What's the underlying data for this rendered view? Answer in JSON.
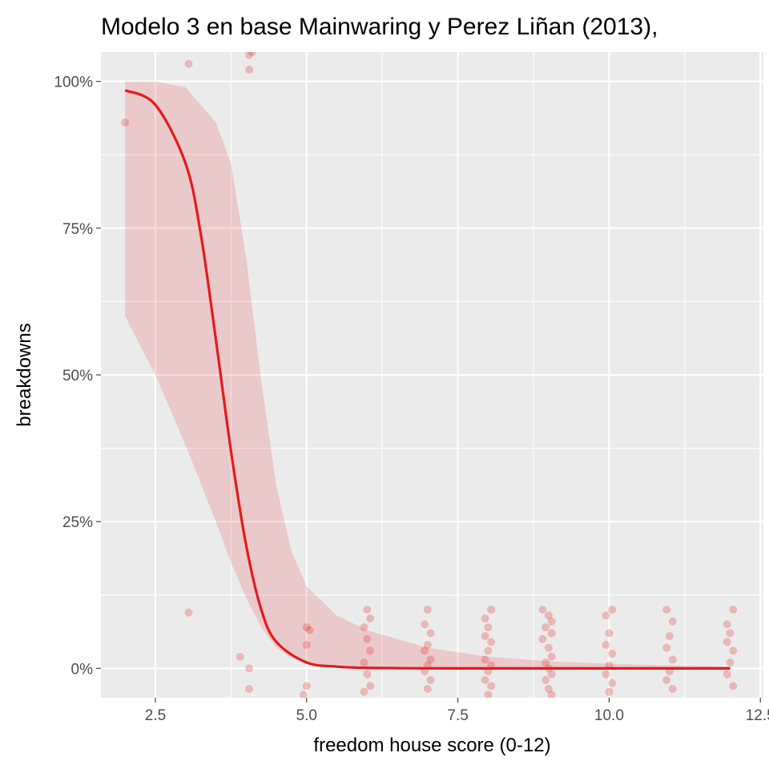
{
  "chart_data": {
    "type": "scatter",
    "title": "Modelo 3 en base Mainwaring y Perez Liñan (2013),",
    "xlabel": "freedom house score (0-12)",
    "ylabel": "breakdowns",
    "xlim": [
      1.6,
      12.55
    ],
    "ylim": [
      -0.05,
      1.05
    ],
    "x_ticks": [
      2.5,
      5.0,
      7.5,
      10.0,
      12.5
    ],
    "x_tick_labels": [
      "2.5",
      "5.0",
      "7.5",
      "10.0",
      "12.5"
    ],
    "y_ticks": [
      0,
      0.25,
      0.5,
      0.75,
      1.0
    ],
    "y_tick_labels": [
      "0%",
      "25%",
      "50%",
      "75%",
      "100%"
    ],
    "grid": true,
    "legend": "none",
    "colors": {
      "line": "#e41a1c",
      "ribbon": "#e41a1c",
      "points": "#e41a1c",
      "panel_background": "#ebebeb",
      "grid": "#ffffff"
    },
    "curve": {
      "x": [
        2,
        2.5,
        3,
        3.25,
        3.5,
        3.75,
        4,
        4.25,
        4.5,
        5,
        5.5,
        6,
        7,
        8,
        9,
        10,
        11,
        12
      ],
      "y": [
        0.985,
        0.96,
        0.86,
        0.74,
        0.56,
        0.37,
        0.21,
        0.1,
        0.045,
        0.01,
        0.003,
        0.0008,
        0.0001,
        0,
        0,
        0,
        0,
        0
      ]
    },
    "confidence_band": {
      "x": [
        2,
        2.5,
        3,
        3.5,
        3.75,
        4,
        4.25,
        4.5,
        4.75,
        5,
        5.5,
        6,
        7,
        8,
        9,
        10,
        11,
        12
      ],
      "lower": [
        0.6,
        0.5,
        0.38,
        0.25,
        0.18,
        0.12,
        0.07,
        0.035,
        0.018,
        0.009,
        0.002,
        0.0005,
        0,
        0,
        0,
        0,
        0,
        0
      ],
      "upper": [
        1.0,
        1.0,
        0.99,
        0.93,
        0.86,
        0.7,
        0.49,
        0.31,
        0.2,
        0.14,
        0.09,
        0.065,
        0.035,
        0.02,
        0.012,
        0.008,
        0.005,
        0.003
      ]
    },
    "points": [
      {
        "x": 2.0,
        "y": 0.93
      },
      {
        "x": 3.05,
        "y": 1.03
      },
      {
        "x": 3.05,
        "y": 0.095
      },
      {
        "x": 3.9,
        "y": 0.02
      },
      {
        "x": 4.05,
        "y": 0.0
      },
      {
        "x": 4.05,
        "y": -0.035
      },
      {
        "x": 4.05,
        "y": 1.045
      },
      {
        "x": 4.05,
        "y": 1.02
      },
      {
        "x": 4.1,
        "y": 1.05
      },
      {
        "x": 5.0,
        "y": 0.07
      },
      {
        "x": 5.0,
        "y": 0.04
      },
      {
        "x": 5.0,
        "y": -0.03
      },
      {
        "x": 4.95,
        "y": -0.045
      },
      {
        "x": 5.05,
        "y": 0.065
      },
      {
        "x": 6.0,
        "y": 0.1
      },
      {
        "x": 6.05,
        "y": 0.085
      },
      {
        "x": 5.95,
        "y": 0.07
      },
      {
        "x": 6.0,
        "y": 0.05
      },
      {
        "x": 6.05,
        "y": 0.03
      },
      {
        "x": 5.95,
        "y": 0.01
      },
      {
        "x": 6.0,
        "y": -0.01
      },
      {
        "x": 6.05,
        "y": -0.03
      },
      {
        "x": 5.95,
        "y": -0.04
      },
      {
        "x": 7.0,
        "y": 0.1
      },
      {
        "x": 6.95,
        "y": 0.075
      },
      {
        "x": 7.05,
        "y": 0.06
      },
      {
        "x": 7.0,
        "y": 0.04
      },
      {
        "x": 6.95,
        "y": 0.03
      },
      {
        "x": 7.05,
        "y": 0.015
      },
      {
        "x": 7.0,
        "y": 0.005
      },
      {
        "x": 6.95,
        "y": -0.005
      },
      {
        "x": 7.05,
        "y": -0.02
      },
      {
        "x": 7.0,
        "y": -0.035
      },
      {
        "x": 7.95,
        "y": 0.085
      },
      {
        "x": 8.05,
        "y": 0.1
      },
      {
        "x": 8.0,
        "y": 0.07
      },
      {
        "x": 7.95,
        "y": 0.055
      },
      {
        "x": 8.05,
        "y": 0.045
      },
      {
        "x": 8.0,
        "y": 0.03
      },
      {
        "x": 7.95,
        "y": 0.015
      },
      {
        "x": 8.05,
        "y": 0.005
      },
      {
        "x": 8.0,
        "y": -0.005
      },
      {
        "x": 7.95,
        "y": -0.02
      },
      {
        "x": 8.05,
        "y": -0.03
      },
      {
        "x": 8.0,
        "y": -0.045
      },
      {
        "x": 8.9,
        "y": 0.1
      },
      {
        "x": 9.0,
        "y": 0.09
      },
      {
        "x": 9.05,
        "y": 0.08
      },
      {
        "x": 8.95,
        "y": 0.07
      },
      {
        "x": 9.05,
        "y": 0.06
      },
      {
        "x": 8.9,
        "y": 0.05
      },
      {
        "x": 9.0,
        "y": 0.035
      },
      {
        "x": 9.05,
        "y": 0.02
      },
      {
        "x": 8.95,
        "y": 0.01
      },
      {
        "x": 9.0,
        "y": 0.0
      },
      {
        "x": 9.05,
        "y": -0.01
      },
      {
        "x": 8.95,
        "y": -0.02
      },
      {
        "x": 9.0,
        "y": -0.035
      },
      {
        "x": 9.05,
        "y": -0.045
      },
      {
        "x": 9.95,
        "y": 0.09
      },
      {
        "x": 10.05,
        "y": 0.1
      },
      {
        "x": 10.0,
        "y": 0.06
      },
      {
        "x": 9.95,
        "y": 0.04
      },
      {
        "x": 10.05,
        "y": 0.025
      },
      {
        "x": 10.0,
        "y": 0.005
      },
      {
        "x": 9.95,
        "y": -0.01
      },
      {
        "x": 10.05,
        "y": -0.025
      },
      {
        "x": 10.0,
        "y": -0.04
      },
      {
        "x": 10.95,
        "y": 0.1
      },
      {
        "x": 11.05,
        "y": 0.08
      },
      {
        "x": 11.0,
        "y": 0.055
      },
      {
        "x": 10.95,
        "y": 0.035
      },
      {
        "x": 11.05,
        "y": 0.015
      },
      {
        "x": 11.0,
        "y": -0.005
      },
      {
        "x": 10.95,
        "y": -0.02
      },
      {
        "x": 11.05,
        "y": -0.035
      },
      {
        "x": 11.95,
        "y": 0.075
      },
      {
        "x": 12.05,
        "y": 0.1
      },
      {
        "x": 12.0,
        "y": 0.06
      },
      {
        "x": 11.95,
        "y": 0.045
      },
      {
        "x": 12.05,
        "y": 0.03
      },
      {
        "x": 12.0,
        "y": 0.01
      },
      {
        "x": 11.95,
        "y": -0.01
      },
      {
        "x": 12.05,
        "y": -0.03
      }
    ]
  }
}
